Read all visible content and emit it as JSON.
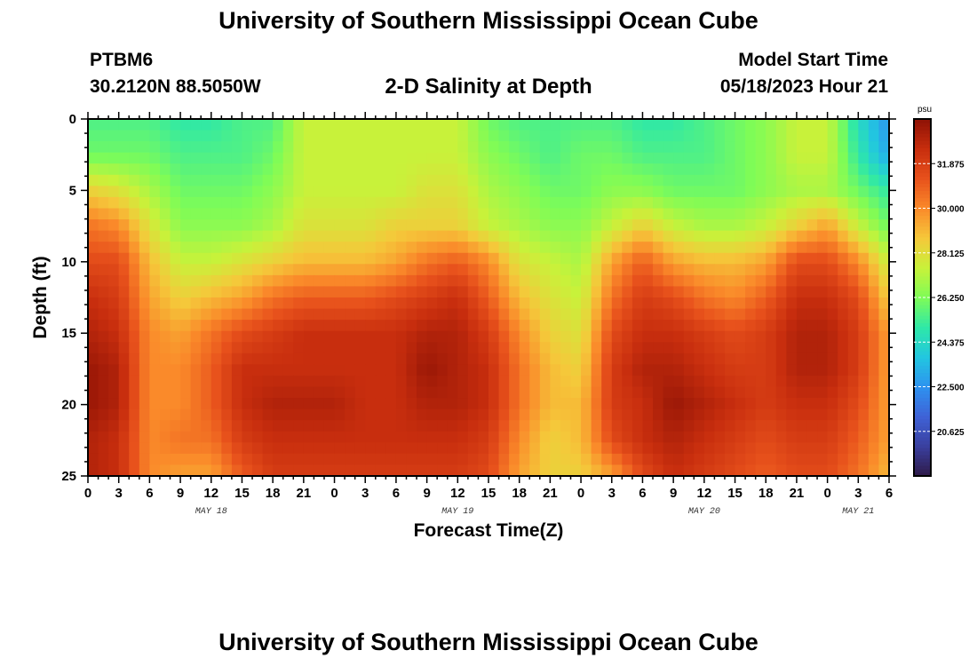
{
  "header": {
    "title": "University of Southern Mississippi Ocean Cube",
    "station_id": "PTBM6",
    "station_coords": "30.2120N  88.5050W",
    "plot_title": "2-D Salinity at Depth",
    "model_start_label": "Model Start Time",
    "model_start_value": "05/18/2023 Hour 21"
  },
  "footer": {
    "title": "University of Southern Mississippi Ocean Cube"
  },
  "chart_data": {
    "type": "heatmap",
    "title": "2-D Salinity at Depth",
    "xlabel": "Forecast Time(Z)",
    "ylabel": "Depth (ft)",
    "x_ticks": [
      "0",
      "3",
      "6",
      "9",
      "12",
      "15",
      "18",
      "21",
      "0",
      "3",
      "6",
      "9",
      "12",
      "15",
      "18",
      "21",
      "0",
      "3",
      "6",
      "9",
      "12",
      "15",
      "18",
      "21",
      "0",
      "3",
      "6"
    ],
    "x_range_hours": [
      0,
      78
    ],
    "date_labels": [
      {
        "label": "MAY 18",
        "hour": 12
      },
      {
        "label": "MAY 19",
        "hour": 36
      },
      {
        "label": "MAY 20",
        "hour": 60
      },
      {
        "label": "MAY 21",
        "hour": 75
      }
    ],
    "y_ticks": [
      "0",
      "5",
      "10",
      "15",
      "20",
      "25"
    ],
    "y_range": [
      0,
      25
    ],
    "colorbar": {
      "unit": "psu",
      "labels": [
        "31.875",
        "30.000",
        "28.125",
        "26.250",
        "24.375",
        "22.500",
        "20.625"
      ],
      "values": [
        31.875,
        30.0,
        28.125,
        26.25,
        24.375,
        22.5,
        20.625
      ],
      "range": [
        18.75,
        33.75
      ],
      "colors": [
        "#2e1a47",
        "#3a3f9e",
        "#3f62d6",
        "#2e92f0",
        "#22c6e0",
        "#2ee8a8",
        "#7efc57",
        "#c8f23a",
        "#f5c83a",
        "#fa8a2a",
        "#e8521c",
        "#c82e0e",
        "#8f1205"
      ]
    },
    "salinity_field": {
      "x_hours": [
        0,
        3,
        6,
        9,
        12,
        15,
        18,
        21,
        24,
        27,
        30,
        33,
        36,
        39,
        42,
        45,
        48,
        51,
        54,
        57,
        60,
        63,
        66,
        69,
        72,
        75,
        78
      ],
      "depths_ft": [
        0,
        2.5,
        5,
        7.5,
        10,
        12.5,
        15,
        17.5,
        20,
        22.5,
        25
      ],
      "values": [
        [
          25.5,
          25.5,
          25.5,
          25.0,
          25.0,
          25.5,
          25.5,
          27.5,
          27.5,
          27.5,
          27.5,
          27.5,
          27.5,
          26.0,
          25.5,
          25.5,
          25.5,
          25.5,
          25.0,
          25.0,
          25.5,
          26.0,
          26.5,
          27.5,
          27.5,
          24.5,
          22.5
        ],
        [
          26.0,
          26.0,
          26.0,
          25.5,
          25.5,
          25.5,
          26.0,
          27.5,
          27.5,
          27.5,
          27.5,
          27.5,
          27.5,
          26.5,
          26.0,
          25.5,
          26.0,
          26.0,
          25.5,
          25.5,
          25.5,
          26.0,
          26.5,
          27.5,
          27.5,
          25.0,
          23.0
        ],
        [
          28.5,
          28.0,
          27.0,
          26.0,
          26.0,
          26.0,
          26.5,
          27.5,
          27.5,
          27.5,
          27.5,
          28.0,
          28.0,
          27.0,
          26.5,
          26.0,
          26.0,
          26.5,
          26.5,
          26.0,
          26.0,
          26.0,
          26.5,
          27.0,
          27.0,
          26.0,
          25.0
        ],
        [
          30.5,
          30.0,
          28.0,
          26.5,
          26.5,
          26.5,
          27.0,
          28.0,
          28.0,
          28.0,
          28.5,
          28.5,
          28.5,
          27.5,
          27.0,
          26.5,
          26.5,
          27.5,
          28.5,
          27.5,
          27.0,
          27.0,
          27.5,
          28.5,
          29.5,
          27.5,
          26.0
        ],
        [
          31.5,
          31.5,
          29.0,
          27.5,
          27.5,
          28.0,
          28.5,
          29.0,
          29.0,
          29.0,
          29.5,
          30.5,
          31.0,
          30.0,
          28.0,
          27.5,
          27.0,
          29.5,
          31.0,
          29.5,
          29.0,
          29.0,
          29.5,
          31.5,
          31.5,
          30.0,
          27.5
        ],
        [
          32.5,
          32.0,
          29.5,
          28.5,
          29.0,
          29.5,
          30.5,
          31.0,
          31.0,
          31.0,
          31.5,
          32.0,
          32.5,
          31.0,
          29.0,
          28.0,
          27.5,
          30.5,
          32.0,
          31.5,
          30.5,
          30.0,
          31.0,
          32.5,
          32.5,
          31.5,
          28.5
        ],
        [
          33.0,
          32.5,
          30.0,
          29.5,
          30.5,
          31.5,
          32.0,
          32.5,
          32.5,
          32.5,
          32.5,
          33.0,
          33.0,
          32.0,
          30.0,
          28.5,
          28.0,
          31.5,
          32.5,
          32.5,
          32.0,
          31.5,
          32.0,
          33.0,
          33.0,
          32.0,
          29.5
        ],
        [
          33.5,
          33.0,
          30.0,
          30.0,
          31.0,
          32.5,
          32.5,
          32.5,
          32.5,
          32.5,
          32.5,
          33.5,
          33.0,
          32.5,
          30.5,
          29.0,
          28.5,
          32.0,
          33.0,
          33.0,
          32.5,
          32.0,
          32.0,
          33.0,
          33.0,
          32.0,
          29.5
        ],
        [
          33.5,
          33.0,
          30.0,
          30.0,
          31.0,
          32.5,
          33.0,
          33.0,
          33.0,
          32.5,
          32.5,
          33.0,
          33.0,
          32.5,
          30.5,
          29.0,
          29.0,
          32.0,
          32.5,
          33.5,
          33.0,
          32.5,
          32.0,
          32.5,
          32.5,
          31.5,
          29.5
        ],
        [
          33.0,
          32.5,
          30.0,
          30.5,
          30.5,
          32.0,
          32.5,
          32.5,
          32.5,
          32.5,
          32.5,
          32.5,
          32.5,
          32.0,
          30.0,
          28.5,
          29.0,
          31.5,
          32.5,
          33.0,
          32.5,
          32.0,
          31.5,
          32.0,
          32.0,
          31.0,
          29.5
        ],
        [
          33.0,
          32.5,
          30.0,
          29.5,
          29.5,
          31.0,
          32.0,
          32.0,
          32.0,
          32.0,
          32.0,
          32.0,
          32.0,
          31.5,
          29.5,
          28.5,
          28.5,
          29.5,
          31.5,
          32.5,
          32.0,
          31.5,
          31.0,
          31.5,
          31.5,
          30.5,
          29.0
        ]
      ]
    }
  }
}
